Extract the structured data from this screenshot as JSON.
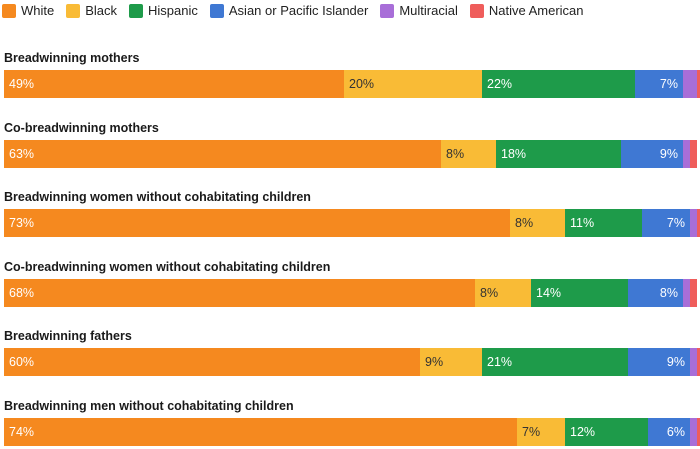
{
  "chart_data": {
    "type": "bar",
    "orientation": "horizontal",
    "stacked": true,
    "legend_position": "top-left",
    "grid": false,
    "xlim": [
      0,
      100
    ],
    "categories": [
      "Breadwinning mothers",
      "Co-breadwinning mothers",
      "Breadwinning women without cohabitating children",
      "Co-breadwinning women without cohabitating children",
      "Breadwinning fathers",
      "Breadwinning men without cohabitating children"
    ],
    "series": [
      {
        "name": "White",
        "color": "#F5891F",
        "label_color": "#ffffff",
        "label_align": "start",
        "values": [
          49,
          63,
          73,
          68,
          60,
          74
        ],
        "labels": [
          "49%",
          "63%",
          "73%",
          "68%",
          "60%",
          "74%"
        ]
      },
      {
        "name": "Black",
        "color": "#F9BB36",
        "label_color": "#333333",
        "label_align": "start",
        "values": [
          20,
          8,
          8,
          8,
          9,
          7
        ],
        "labels": [
          "20%",
          "8%",
          "8%",
          "8%",
          "9%",
          "7%"
        ]
      },
      {
        "name": "Hispanic",
        "color": "#1E9B4A",
        "label_color": "#ffffff",
        "label_align": "start",
        "values": [
          22,
          18,
          11,
          14,
          21,
          12
        ],
        "labels": [
          "22%",
          "18%",
          "11%",
          "14%",
          "21%",
          "12%"
        ]
      },
      {
        "name": "Asian or Pacific Islander",
        "color": "#3F78D3",
        "label_color": "#ffffff",
        "label_align": "end",
        "values": [
          7,
          9,
          7,
          8,
          9,
          6
        ],
        "labels": [
          "7%",
          "9%",
          "7%",
          "8%",
          "9%",
          "6%"
        ]
      },
      {
        "name": "Multiracial",
        "color": "#A86ED8",
        "label_color": "#ffffff",
        "label_align": "none",
        "values": [
          2,
          1,
          1,
          1,
          1,
          1
        ],
        "labels": [
          "",
          "",
          "",
          "",
          "",
          ""
        ]
      },
      {
        "name": "Native American",
        "color": "#EF5D5B",
        "label_color": "#ffffff",
        "label_align": "none",
        "values": [
          1,
          1,
          1,
          1,
          1,
          1
        ],
        "labels": [
          "",
          "",
          "",
          "",
          "",
          ""
        ]
      }
    ]
  }
}
